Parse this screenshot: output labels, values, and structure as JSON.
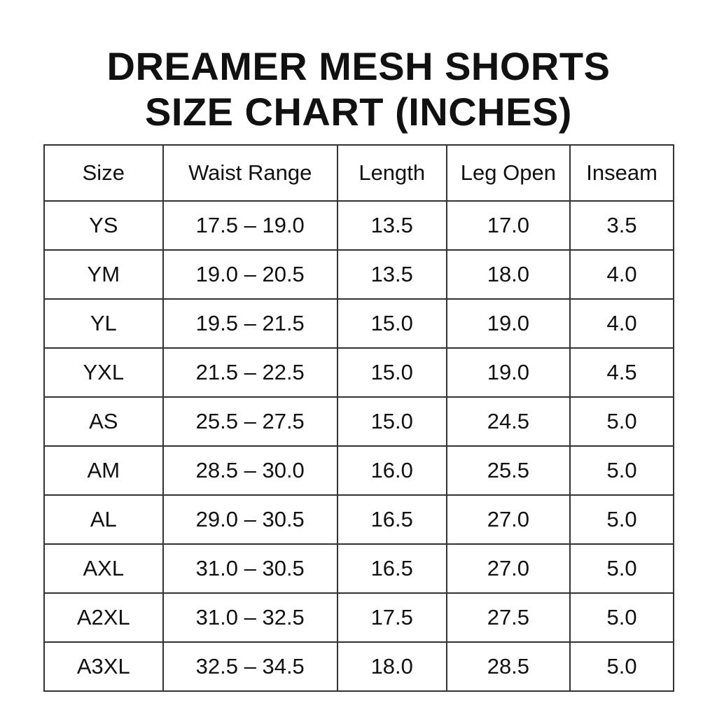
{
  "title": {
    "line1": "DREAMER MESH SHORTS",
    "line2": "SIZE CHART (INCHES)"
  },
  "table": {
    "headers": [
      "Size",
      "Waist Range",
      "Length",
      "Leg Open",
      "Inseam"
    ],
    "rows": [
      [
        "YS",
        "17.5 – 19.0",
        "13.5",
        "17.0",
        "3.5"
      ],
      [
        "YM",
        "19.0 – 20.5",
        "13.5",
        "18.0",
        "4.0"
      ],
      [
        "YL",
        "19.5 – 21.5",
        "15.0",
        "19.0",
        "4.0"
      ],
      [
        "YXL",
        "21.5 – 22.5",
        "15.0",
        "19.0",
        "4.5"
      ],
      [
        "AS",
        "25.5 – 27.5",
        "15.0",
        "24.5",
        "5.0"
      ],
      [
        "AM",
        "28.5 – 30.0",
        "16.0",
        "25.5",
        "5.0"
      ],
      [
        "AL",
        "29.0 – 30.5",
        "16.5",
        "27.0",
        "5.0"
      ],
      [
        "AXL",
        "31.0 – 30.5",
        "16.5",
        "27.0",
        "5.0"
      ],
      [
        "A2XL",
        "31.0 – 32.5",
        "17.5",
        "27.5",
        "5.0"
      ],
      [
        "A3XL",
        "32.5 – 34.5",
        "18.0",
        "28.5",
        "5.0"
      ]
    ]
  }
}
